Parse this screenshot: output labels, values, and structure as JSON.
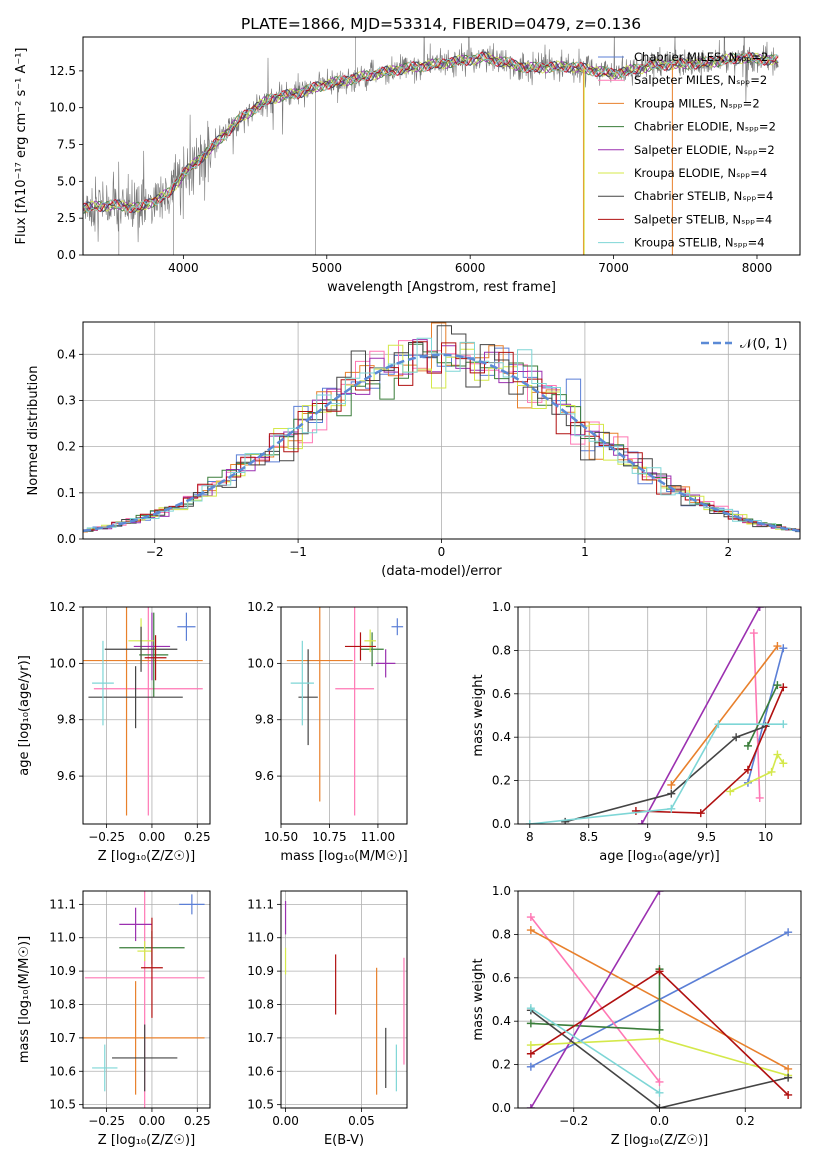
{
  "figure": {
    "title": "PLATE=1866, MJD=53314, FIBERID=0479, z=0.136"
  },
  "chart_data": [
    {
      "id": "spectrum",
      "type": "line",
      "xlabel": "wavelength [Angstrom, rest frame]",
      "ylabel": "Flux [fλ10⁻¹⁷ erg cm⁻² s⁻¹ A⁻¹]",
      "xlim": [
        3300,
        8300
      ],
      "ylim": [
        0,
        14.8
      ],
      "xticks": [
        4000,
        5000,
        6000,
        7000,
        8000
      ],
      "yticks": [
        0.0,
        2.5,
        5.0,
        7.5,
        10.0,
        12.5
      ],
      "grid": false,
      "legend_placement": "right",
      "legend": [
        {
          "label": "Chabrier MILES, Nₛₚₚ=2",
          "color": "#5b7fd6"
        },
        {
          "label": "Salpeter MILES, Nₛₚₚ=2",
          "color": "#ff77b4"
        },
        {
          "label": "Kroupa MILES, Nₛₚₚ=2",
          "color": "#e8802c"
        },
        {
          "label": "Chabrier ELODIE, Nₛₚₚ=2",
          "color": "#3a7d3a"
        },
        {
          "label": "Salpeter ELODIE, Nₛₚₚ=2",
          "color": "#9b30b0"
        },
        {
          "label": "Kroupa ELODIE, Nₛₚₚ=4",
          "color": "#d4e84a"
        },
        {
          "label": "Chabrier STELIB, Nₛₚₚ=4",
          "color": "#444444"
        },
        {
          "label": "Salpeter STELIB, Nₛₚₚ=4",
          "color": "#b01010"
        },
        {
          "label": "Kroupa STELIB, Nₛₚₚ=4",
          "color": "#7ed6d6"
        }
      ],
      "continuum": {
        "x": [
          3300,
          3500,
          3700,
          3900,
          4000,
          4200,
          4400,
          4600,
          4800,
          5000,
          5200,
          5500,
          5800,
          6100,
          6400,
          6700,
          7000,
          7300,
          7600,
          7900,
          8150
        ],
        "y": [
          3.2,
          3.4,
          3.2,
          4.2,
          5.5,
          7.3,
          9.3,
          10.6,
          11.0,
          11.6,
          12.0,
          12.6,
          13.0,
          13.4,
          12.7,
          12.8,
          12.3,
          12.9,
          13.0,
          13.4,
          13.2
        ]
      }
    },
    {
      "id": "residuals",
      "type": "line",
      "xlabel": "(data-model)/error",
      "ylabel": "Normed distribution",
      "xlim": [
        -2.5,
        2.5
      ],
      "ylim": [
        0,
        0.47
      ],
      "xticks": [
        -2,
        -1,
        0,
        1,
        2
      ],
      "yticks": [
        0.0,
        0.1,
        0.2,
        0.3,
        0.4
      ],
      "grid": true,
      "legend_placement": "top-right",
      "legend": [
        {
          "label": "𝒩(0, 1)",
          "color": "#5b8ad6"
        }
      ],
      "bin_width": 0.1
    },
    {
      "id": "age_vs_Z",
      "type": "scatter",
      "xlabel": "Z [log₁₀(Z/Z☉)]",
      "ylabel": "age [log₁₀(age/yr)]",
      "xlim": [
        -0.38,
        0.32
      ],
      "ylim": [
        9.43,
        10.2
      ],
      "xticks": [
        -0.25,
        0.0,
        0.25
      ],
      "xticklabels": [
        "−0.25",
        "0.00",
        "0.25"
      ],
      "yticks": [
        9.6,
        9.8,
        10.0,
        10.2
      ],
      "grid": true,
      "points": [
        {
          "x": 0.19,
          "y": 10.13,
          "xerr": 0.05,
          "yerr": 0.05,
          "color": "#5b7fd6"
        },
        {
          "x": -0.02,
          "y": 9.91,
          "xerr": 0.3,
          "yerr": 0.45,
          "color": "#ff77b4"
        },
        {
          "x": -0.14,
          "y": 10.01,
          "xerr": 0.42,
          "yerr": 0.55,
          "color": "#e8802c"
        },
        {
          "x": 0.01,
          "y": 10.03,
          "xerr": 0.08,
          "yerr": 0.15,
          "color": "#3a7d3a"
        },
        {
          "x": 0.0,
          "y": 10.06,
          "xerr": 0.1,
          "yerr": 0.12,
          "color": "#9b30b0"
        },
        {
          "x": -0.06,
          "y": 10.08,
          "xerr": 0.07,
          "yerr": 0.08,
          "color": "#d4e84a"
        },
        {
          "x": -0.09,
          "y": 9.88,
          "xerr": 0.26,
          "yerr": 0.11,
          "color": "#444444"
        },
        {
          "x": -0.06,
          "y": 10.05,
          "xerr": 0.2,
          "yerr": 0.08,
          "color": "#444444"
        },
        {
          "x": 0.02,
          "y": 10.02,
          "xerr": 0.06,
          "yerr": 0.08,
          "color": "#b01010"
        },
        {
          "x": -0.27,
          "y": 9.93,
          "xerr": 0.06,
          "yerr": 0.15,
          "color": "#7ed6d6"
        }
      ]
    },
    {
      "id": "age_vs_mass",
      "type": "scatter",
      "xlabel": "mass [log₁₀(M/M☉)]",
      "ylabel": "",
      "xlim": [
        10.5,
        11.15
      ],
      "ylim": [
        9.43,
        10.2
      ],
      "xticks": [
        10.5,
        10.75,
        11.0
      ],
      "xticklabels": [
        "10.50",
        "10.75",
        "11.00"
      ],
      "yticks": [
        9.6,
        9.8,
        10.0,
        10.2
      ],
      "grid": true,
      "points": [
        {
          "x": 11.1,
          "y": 10.13,
          "xerr": 0.03,
          "yerr": 0.03,
          "color": "#5b7fd6"
        },
        {
          "x": 10.88,
          "y": 9.91,
          "xerr": 0.1,
          "yerr": 0.45,
          "color": "#ff77b4"
        },
        {
          "x": 10.7,
          "y": 10.01,
          "xerr": 0.17,
          "yerr": 0.5,
          "color": "#e8802c"
        },
        {
          "x": 10.97,
          "y": 10.05,
          "xerr": 0.06,
          "yerr": 0.06,
          "color": "#3a7d3a"
        },
        {
          "x": 11.04,
          "y": 10.0,
          "xerr": 0.05,
          "yerr": 0.05,
          "color": "#9b30b0"
        },
        {
          "x": 10.96,
          "y": 10.08,
          "xerr": 0.03,
          "yerr": 0.04,
          "color": "#d4e84a"
        },
        {
          "x": 10.64,
          "y": 9.88,
          "xerr": 0.05,
          "yerr": 0.17,
          "color": "#444444"
        },
        {
          "x": 10.91,
          "y": 10.06,
          "xerr": 0.08,
          "yerr": 0.05,
          "color": "#b01010"
        },
        {
          "x": 10.61,
          "y": 9.93,
          "xerr": 0.06,
          "yerr": 0.15,
          "color": "#7ed6d6"
        }
      ]
    },
    {
      "id": "mass_weight_vs_age",
      "type": "line",
      "xlabel": "age  [log₁₀(age/yr)]",
      "ylabel": "mass weight",
      "xlim": [
        7.9,
        10.3
      ],
      "ylim": [
        0,
        1.0
      ],
      "xticks": [
        8.0,
        8.5,
        9.0,
        9.5,
        10.0
      ],
      "yticks": [
        0.0,
        0.2,
        0.4,
        0.6,
        0.8,
        1.0
      ],
      "grid": true,
      "series": [
        {
          "color": "#5b7fd6",
          "x": [
            9.85,
            10.15
          ],
          "y": [
            0.19,
            0.81
          ]
        },
        {
          "color": "#ff77b4",
          "x": [
            9.9,
            9.95
          ],
          "y": [
            0.88,
            0.12
          ]
        },
        {
          "color": "#e8802c",
          "x": [
            9.2,
            10.1
          ],
          "y": [
            0.18,
            0.82
          ]
        },
        {
          "color": "#3a7d3a",
          "x": [
            9.85,
            10.1
          ],
          "y": [
            0.36,
            0.64
          ]
        },
        {
          "color": "#9b30b0",
          "x": [
            8.95,
            9.95
          ],
          "y": [
            0.0,
            1.0
          ]
        },
        {
          "color": "#d4e84a",
          "x": [
            9.7,
            10.05,
            10.1,
            10.15
          ],
          "y": [
            0.15,
            0.24,
            0.32,
            0.28
          ]
        },
        {
          "color": "#444444",
          "x": [
            8.3,
            9.2,
            9.75,
            10.0
          ],
          "y": [
            0.01,
            0.14,
            0.4,
            0.45
          ]
        },
        {
          "color": "#b01010",
          "x": [
            8.9,
            9.45,
            9.85,
            10.15
          ],
          "y": [
            0.06,
            0.05,
            0.25,
            0.63
          ]
        },
        {
          "color": "#7ed6d6",
          "x": [
            8.0,
            9.2,
            9.6,
            10.15
          ],
          "y": [
            0.0,
            0.07,
            0.46,
            0.46
          ]
        }
      ]
    },
    {
      "id": "mass_vs_Z",
      "type": "scatter",
      "xlabel": "Z [log₁₀(Z/Z☉)]",
      "ylabel": "mass [log₁₀(M/M☉)]",
      "xlim": [
        -0.38,
        0.32
      ],
      "ylim": [
        10.49,
        11.14
      ],
      "xticks": [
        -0.25,
        0.0,
        0.25
      ],
      "xticklabels": [
        "−0.25",
        "0.00",
        "0.25"
      ],
      "yticks": [
        10.5,
        10.6,
        10.7,
        10.8,
        10.9,
        11.0,
        11.1
      ],
      "grid": true,
      "points": [
        {
          "x": 0.22,
          "y": 11.1,
          "xerr": 0.07,
          "yerr": 0.03,
          "color": "#5b7fd6"
        },
        {
          "x": -0.04,
          "y": 10.88,
          "xerr": 0.33,
          "yerr": 0.4,
          "color": "#ff77b4"
        },
        {
          "x": -0.09,
          "y": 10.7,
          "xerr": 0.38,
          "yerr": 0.17,
          "color": "#e8802c"
        },
        {
          "x": 0.0,
          "y": 10.97,
          "xerr": 0.18,
          "yerr": 0.05,
          "color": "#3a7d3a"
        },
        {
          "x": -0.09,
          "y": 11.04,
          "xerr": 0.09,
          "yerr": 0.05,
          "color": "#9b30b0"
        },
        {
          "x": -0.04,
          "y": 10.96,
          "xerr": 0.04,
          "yerr": 0.03,
          "color": "#d4e84a"
        },
        {
          "x": -0.04,
          "y": 10.64,
          "xerr": 0.18,
          "yerr": 0.1,
          "color": "#444444"
        },
        {
          "x": 0.0,
          "y": 10.91,
          "xerr": 0.06,
          "yerr": 0.15,
          "color": "#b01010"
        },
        {
          "x": -0.26,
          "y": 10.61,
          "xerr": 0.07,
          "yerr": 0.07,
          "color": "#7ed6d6"
        }
      ]
    },
    {
      "id": "mass_vs_ebv",
      "type": "scatter",
      "xlabel": "E(B-V)",
      "ylabel": "",
      "xlim": [
        -0.003,
        0.08
      ],
      "ylim": [
        10.49,
        11.14
      ],
      "xticks": [
        0.0,
        0.05
      ],
      "xticklabels": [
        "0.00",
        "0.05"
      ],
      "yticks": [
        10.5,
        10.6,
        10.7,
        10.8,
        10.9,
        11.0,
        11.1
      ],
      "grid": true,
      "points": [
        {
          "x": 0.0,
          "y": 11.06,
          "xerr": 0,
          "yerr": 0.05,
          "color": "#9b30b0"
        },
        {
          "x": 0.0,
          "y": 10.93,
          "xerr": 0,
          "yerr": 0.04,
          "color": "#d4e84a"
        },
        {
          "x": 0.033,
          "y": 10.86,
          "xerr": 0,
          "yerr": 0.09,
          "color": "#b01010"
        },
        {
          "x": 0.06,
          "y": 10.72,
          "xerr": 0,
          "yerr": 0.19,
          "color": "#e8802c"
        },
        {
          "x": 0.066,
          "y": 10.64,
          "xerr": 0,
          "yerr": 0.09,
          "color": "#444444"
        },
        {
          "x": 0.073,
          "y": 10.61,
          "xerr": 0,
          "yerr": 0.07,
          "color": "#7ed6d6"
        },
        {
          "x": 0.078,
          "y": 10.78,
          "xerr": 0,
          "yerr": 0.16,
          "color": "#ff77b4"
        }
      ]
    },
    {
      "id": "mass_weight_vs_Z",
      "type": "line",
      "xlabel": "Z [log₁₀(Z/Z☉)]",
      "ylabel": "mass weight",
      "xlim": [
        -0.33,
        0.33
      ],
      "ylim": [
        0,
        1.0
      ],
      "xticks": [
        -0.2,
        0.0,
        0.2
      ],
      "xticklabels": [
        "−0.2",
        "0.0",
        "0.2"
      ],
      "yticks": [
        0.0,
        0.2,
        0.4,
        0.6,
        0.8,
        1.0
      ],
      "grid": true,
      "series": [
        {
          "color": "#5b7fd6",
          "x": [
            -0.3,
            0.3
          ],
          "y": [
            0.19,
            0.81
          ]
        },
        {
          "color": "#ff77b4",
          "x": [
            -0.3,
            0.0
          ],
          "y": [
            0.88,
            0.12
          ]
        },
        {
          "color": "#e8802c",
          "x": [
            -0.3,
            0.3
          ],
          "y": [
            0.82,
            0.18
          ]
        },
        {
          "color": "#3a7d3a",
          "x": [
            -0.3,
            0.0,
            0.0
          ],
          "y": [
            0.39,
            0.36,
            0.64
          ]
        },
        {
          "color": "#9b30b0",
          "x": [
            -0.3,
            0.0
          ],
          "y": [
            0.0,
            1.0
          ]
        },
        {
          "color": "#d4e84a",
          "x": [
            -0.3,
            0.0,
            0.3
          ],
          "y": [
            0.29,
            0.32,
            0.15
          ]
        },
        {
          "color": "#444444",
          "x": [
            -0.3,
            0.0,
            0.3
          ],
          "y": [
            0.45,
            0.0,
            0.14
          ]
        },
        {
          "color": "#b01010",
          "x": [
            -0.3,
            0.0,
            0.3
          ],
          "y": [
            0.25,
            0.63,
            0.06
          ]
        },
        {
          "color": "#7ed6d6",
          "x": [
            -0.3,
            0.0
          ],
          "y": [
            0.46,
            0.07
          ]
        }
      ]
    }
  ]
}
